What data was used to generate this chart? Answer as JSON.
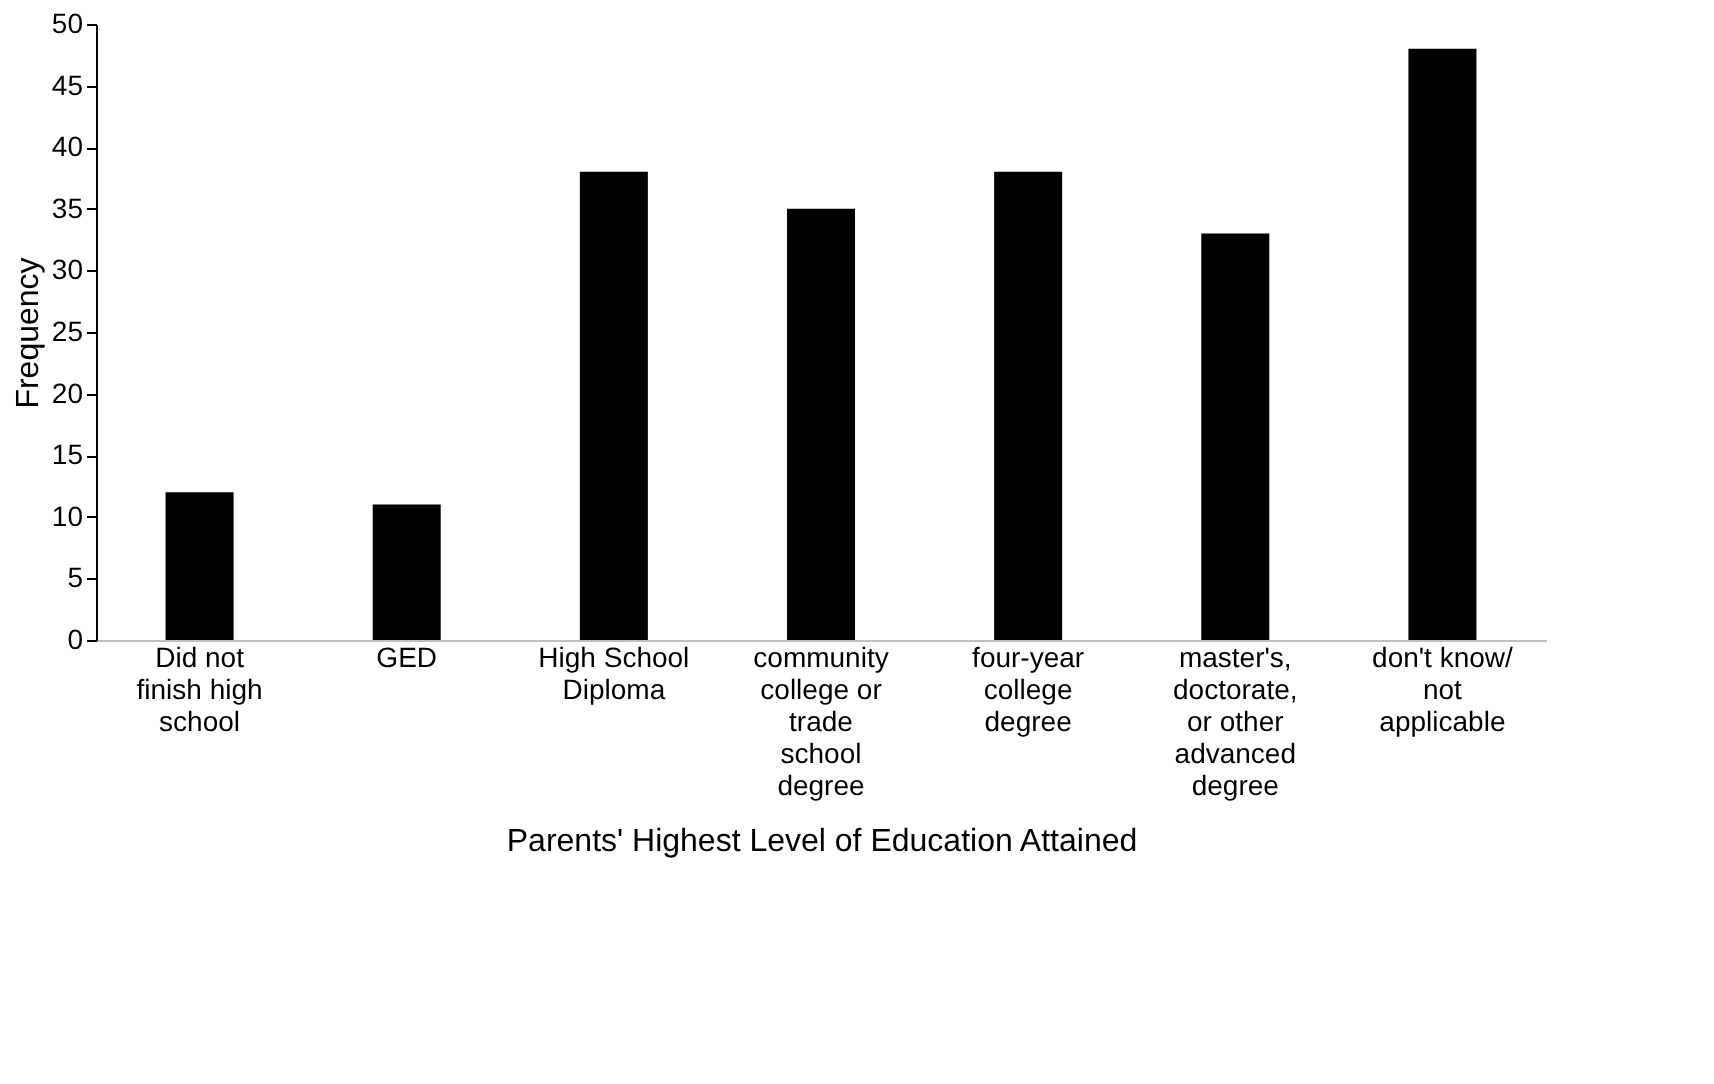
{
  "chart_data": {
    "type": "bar",
    "xlabel": "Parents' Highest Level of Education Attained",
    "ylabel": "Frequency",
    "categories": [
      "Did not finish high school",
      "GED",
      "High School Diploma",
      "community college or trade school degree",
      "four-year college degree",
      "master's, doctorate, or other advanced degree",
      "don't know/ not applicable"
    ],
    "values": [
      12,
      11,
      38,
      35,
      38,
      33,
      48
    ],
    "color": "#000000",
    "ylim": [
      0,
      50
    ],
    "yticks": [
      0,
      5,
      10,
      15,
      20,
      25,
      30,
      35,
      40,
      45,
      50
    ],
    "grid": false
  }
}
